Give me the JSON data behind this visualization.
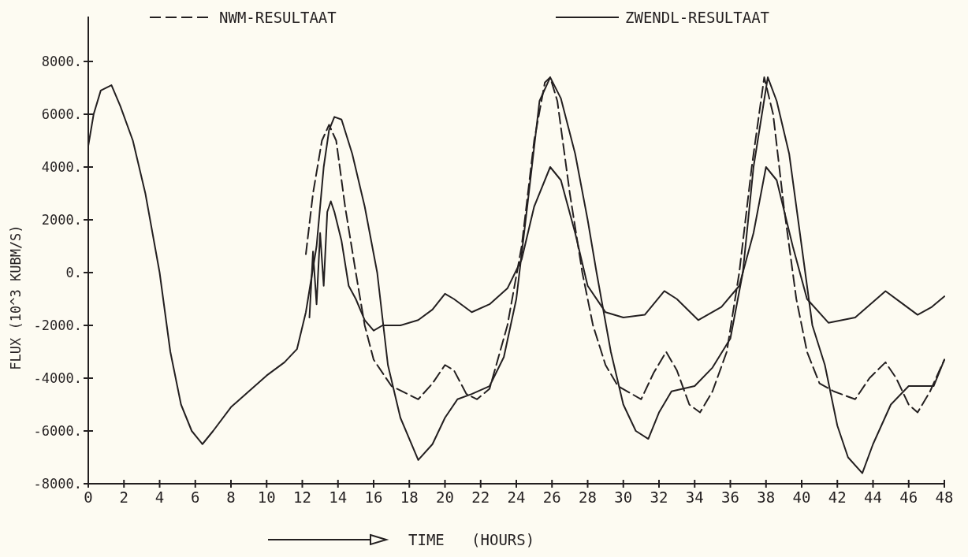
{
  "chart_data": {
    "type": "line",
    "xlabel": "TIME   (HOURS)",
    "ylabel": "FLUX (10^3 KUBM/S)",
    "xlim": [
      0,
      48
    ],
    "ylim": [
      -8000,
      9700
    ],
    "xticks": [
      0,
      2,
      4,
      6,
      8,
      10,
      12,
      14,
      16,
      18,
      20,
      22,
      24,
      26,
      28,
      30,
      32,
      34,
      36,
      38,
      40,
      42,
      44,
      46,
      48
    ],
    "yticks": [
      {
        "value": -8000,
        "label": "-8000."
      },
      {
        "value": -6000,
        "label": "-6000."
      },
      {
        "value": -4000,
        "label": "-4000."
      },
      {
        "value": -2000,
        "label": "-2000."
      },
      {
        "value": 0,
        "label": "0."
      },
      {
        "value": 2000,
        "label": "2000."
      },
      {
        "value": 4000,
        "label": "4000."
      },
      {
        "value": 6000,
        "label": "6000."
      },
      {
        "value": 8000,
        "label": "8000."
      }
    ],
    "grid": false,
    "legend": "top",
    "marker": "none",
    "series": [
      {
        "name": "NWM-RESULTAAT",
        "color": "#231f20",
        "line_style": "dashed",
        "x": [
          12.2,
          12.6,
          13.1,
          13.5,
          13.9,
          14.4,
          15,
          15.5,
          16,
          17,
          18.5,
          19.3,
          20,
          20.5,
          21.2,
          21.8,
          22.5,
          23.5,
          24.3,
          25,
          25.6,
          25.9,
          26.3,
          27,
          27.7,
          28.3,
          29,
          29.7,
          31,
          31.7,
          32.4,
          33,
          33.7,
          34.3,
          35,
          35.8,
          36.5,
          37.2,
          37.9,
          38.4,
          39,
          39.7,
          40.3,
          41,
          41.8,
          43,
          43.8,
          44.7,
          45.3,
          46,
          46.5,
          47.2,
          48
        ],
        "values": [
          700,
          3000,
          5000,
          5600,
          5000,
          2500,
          0,
          -2000,
          -3300,
          -4300,
          -4800,
          -4200,
          -3500,
          -3700,
          -4600,
          -4800,
          -4400,
          -2000,
          1000,
          5000,
          7200,
          7400,
          6500,
          3000,
          0,
          -2000,
          -3500,
          -4300,
          -4800,
          -3800,
          -3000,
          -3700,
          -5000,
          -5300,
          -4500,
          -3000,
          0,
          4000,
          7400,
          6000,
          2500,
          -1000,
          -3000,
          -4200,
          -4500,
          -4800,
          -4000,
          -3400,
          -4000,
          -5000,
          -5300,
          -4500,
          -3300
        ]
      },
      {
        "name": "ZWENDL-RESULTAAT",
        "color": "#231f20",
        "line_style": "solid",
        "x": [
          0,
          0.3,
          0.7,
          1.3,
          1.8,
          2.5,
          3.2,
          4,
          4.6,
          5.2,
          5.8,
          6.4,
          7,
          8,
          9,
          10,
          11,
          11.7,
          12.2,
          12.8,
          13.2,
          13.5,
          13.8,
          14.2,
          14.8,
          15.5,
          16.2,
          16.8,
          17.5,
          18.5,
          19.3,
          20,
          20.7,
          21.5,
          22.5,
          23.3,
          24,
          24.7,
          25.3,
          25.9,
          26.5,
          27.3,
          28,
          28.5,
          29.3,
          30,
          30.7,
          31.4,
          32,
          32.7,
          34,
          35,
          36,
          36.7,
          37.3,
          38.1,
          38.6,
          39.3,
          40,
          40.6,
          41.3,
          42,
          42.6,
          43.4,
          44,
          45,
          46,
          47.4,
          48
        ],
        "values": [
          4800,
          6000,
          6900,
          7100,
          6300,
          5000,
          3000,
          0,
          -3000,
          -5000,
          -6000,
          -6500,
          -6000,
          -5100,
          -4500,
          -3900,
          -3400,
          -2900,
          -1500,
          1000,
          4000,
          5400,
          5900,
          5800,
          4500,
          2500,
          0,
          -3500,
          -5500,
          -7100,
          -6500,
          -5500,
          -4800,
          -4600,
          -4300,
          -3200,
          -1000,
          3000,
          6500,
          7400,
          6600,
          4500,
          2000,
          0,
          -3000,
          -5000,
          -6000,
          -6300,
          -5300,
          -4500,
          -4300,
          -3600,
          -2500,
          0,
          4000,
          7400,
          6500,
          4500,
          1000,
          -2000,
          -3500,
          -5800,
          -7000,
          -7600,
          -6500,
          -5000,
          -4300,
          -4300,
          -3300
        ]
      },
      {
        "color": "#231f20",
        "line_style": "solid",
        "x": [
          12.4,
          12.6,
          12.8,
          13,
          13.2,
          13.4,
          13.6,
          13.8,
          14.2,
          14.6,
          15,
          15.5,
          16,
          16.5,
          17.5,
          18.5,
          19.3,
          20,
          20.5,
          21.5,
          22.5,
          23.5,
          24.3,
          25,
          25.9,
          26.5,
          27.3,
          28,
          29,
          30,
          31.2,
          32.3,
          33,
          34.2,
          35.5,
          36.5,
          37.3,
          38,
          38.6,
          39.5,
          40.3,
          41.5,
          43,
          44.7,
          45.5,
          46.5,
          47.3,
          48
        ],
        "values": [
          -1700,
          800,
          -1200,
          1500,
          -500,
          2300,
          2700,
          2300,
          1200,
          -500,
          -1000,
          -1800,
          -2200,
          -2000,
          -2000,
          -1800,
          -1400,
          -800,
          -1000,
          -1500,
          -1200,
          -600,
          500,
          2500,
          4000,
          3500,
          1500,
          -500,
          -1500,
          -1700,
          -1600,
          -700,
          -1000,
          -1800,
          -1300,
          -500,
          1500,
          4000,
          3500,
          1000,
          -1000,
          -1900,
          -1700,
          -700,
          -1100,
          -1600,
          -1300,
          -900
        ]
      }
    ]
  }
}
